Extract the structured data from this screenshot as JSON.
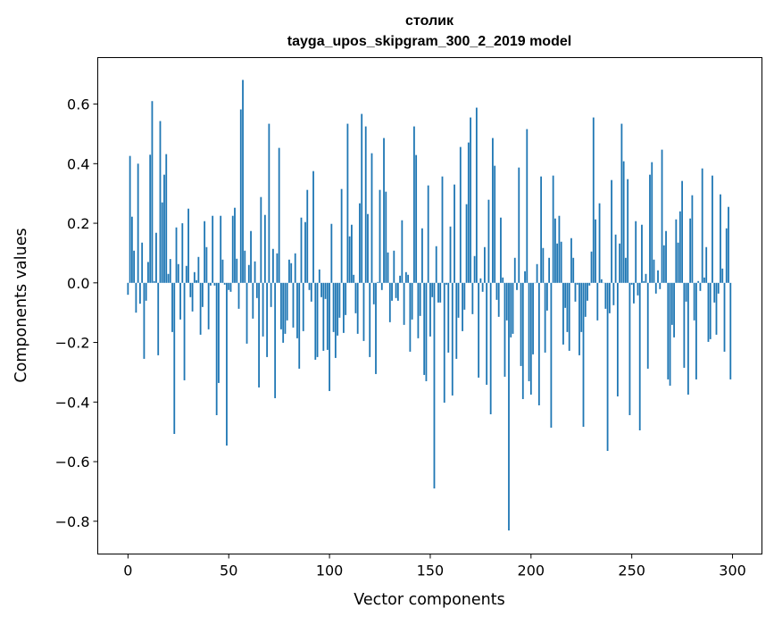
{
  "chart_data": {
    "type": "bar",
    "title": "столик",
    "subtitle": "tayga_upos_skipgram_300_2_2019 model",
    "xlabel": "Vector components",
    "ylabel": "Components values",
    "xlim": [
      -15,
      314.6
    ],
    "ylim": [
      -0.91,
      0.756
    ],
    "xticks": [
      0,
      50,
      100,
      150,
      200,
      250,
      300
    ],
    "xtick_labels": [
      "0",
      "50",
      "100",
      "150",
      "200",
      "250",
      "300"
    ],
    "yticks": [
      -0.8,
      -0.6,
      -0.4,
      -0.2,
      0.0,
      0.2,
      0.4,
      0.6
    ],
    "ytick_labels": [
      "−0.8",
      "−0.6",
      "−0.4",
      "−0.2",
      "0.0",
      "0.2",
      "0.4",
      "0.6"
    ],
    "grid": false,
    "color": "#1f77b4",
    "values": [
      -0.04,
      0.426,
      0.222,
      0.108,
      -0.1,
      0.4,
      -0.07,
      0.135,
      -0.255,
      -0.06,
      0.07,
      0.43,
      0.61,
      0.006,
      0.168,
      -0.243,
      0.543,
      0.27,
      0.363,
      0.432,
      0.03,
      0.08,
      -0.165,
      -0.507,
      0.186,
      0.063,
      -0.123,
      0.2,
      -0.327,
      0.057,
      0.249,
      -0.048,
      -0.096,
      0.036,
      0.009,
      0.087,
      -0.174,
      -0.081,
      0.207,
      0.12,
      -0.156,
      -0.009,
      0.225,
      -0.009,
      -0.444,
      -0.336,
      0.225,
      0.078,
      -0.006,
      -0.546,
      -0.024,
      -0.03,
      0.225,
      0.252,
      0.081,
      -0.087,
      0.582,
      0.681,
      0.108,
      -0.204,
      0.06,
      0.174,
      -0.12,
      0.072,
      -0.051,
      -0.351,
      0.288,
      -0.18,
      0.228,
      -0.249,
      0.534,
      -0.081,
      0.114,
      -0.387,
      0.099,
      0.453,
      -0.156,
      -0.201,
      -0.171,
      -0.126,
      0.078,
      0.066,
      -0.15,
      0.099,
      -0.186,
      -0.288,
      0.219,
      -0.162,
      0.204,
      0.312,
      -0.024,
      -0.063,
      0.375,
      -0.258,
      -0.249,
      0.045,
      -0.048,
      -0.228,
      -0.054,
      -0.225,
      -0.363,
      0.198,
      -0.165,
      -0.252,
      -0.177,
      -0.117,
      0.315,
      -0.168,
      -0.108,
      0.534,
      0.156,
      0.195,
      0.027,
      -0.102,
      -0.171,
      0.267,
      0.567,
      -0.195,
      0.525,
      0.231,
      -0.249,
      0.435,
      -0.072,
      -0.306,
      0.003,
      0.312,
      -0.024,
      0.486,
      0.306,
      0.102,
      -0.132,
      -0.06,
      0.108,
      -0.051,
      -0.06,
      0.024,
      0.21,
      -0.141,
      0.036,
      0.027,
      -0.231,
      -0.123,
      0.525,
      0.429,
      -0.186,
      -0.111,
      0.183,
      -0.309,
      -0.33,
      0.327,
      -0.18,
      -0.048,
      -0.69,
      0.123,
      -0.066,
      -0.066,
      0.357,
      -0.402,
      -0.006,
      -0.234,
      0.189,
      -0.378,
      0.33,
      -0.255,
      -0.117,
      0.456,
      -0.162,
      -0.09,
      0.264,
      0.471,
      0.555,
      -0.105,
      0.09,
      0.588,
      -0.318,
      0.015,
      -0.03,
      0.12,
      -0.342,
      0.279,
      -0.441,
      0.486,
      0.393,
      -0.057,
      -0.114,
      0.219,
      0.018,
      -0.315,
      -0.126,
      -0.831,
      -0.183,
      -0.171,
      0.084,
      -0.024,
      0.387,
      -0.279,
      -0.39,
      0.039,
      0.516,
      -0.33,
      -0.375,
      -0.24,
      0.0,
      0.063,
      -0.411,
      0.357,
      0.117,
      -0.234,
      -0.093,
      0.084,
      -0.486,
      0.36,
      0.216,
      0.132,
      0.225,
      0.138,
      -0.207,
      -0.084,
      -0.165,
      -0.228,
      0.15,
      0.084,
      -0.063,
      -0.006,
      -0.243,
      -0.165,
      -0.483,
      -0.114,
      -0.06,
      -0.009,
      0.105,
      0.555,
      0.213,
      -0.126,
      0.267,
      0.012,
      0.0,
      -0.087,
      -0.564,
      -0.102,
      0.345,
      -0.075,
      0.162,
      -0.381,
      0.132,
      0.534,
      0.408,
      0.084,
      0.348,
      -0.444,
      -0.006,
      -0.069,
      0.207,
      -0.042,
      -0.495,
      0.195,
      0.006,
      0.03,
      -0.288,
      0.363,
      0.405,
      0.078,
      -0.036,
      0.042,
      -0.021,
      0.447,
      0.126,
      0.174,
      -0.324,
      -0.345,
      -0.141,
      -0.183,
      0.213,
      0.135,
      0.24,
      0.342,
      -0.285,
      -0.063,
      -0.375,
      0.216,
      0.294,
      -0.126,
      -0.324,
      0.006,
      -0.027,
      0.384,
      0.018,
      0.12,
      -0.198,
      -0.189,
      0.36,
      -0.066,
      -0.174,
      -0.036,
      0.297,
      0.048,
      -0.231,
      0.183,
      0.255,
      -0.324
    ]
  }
}
